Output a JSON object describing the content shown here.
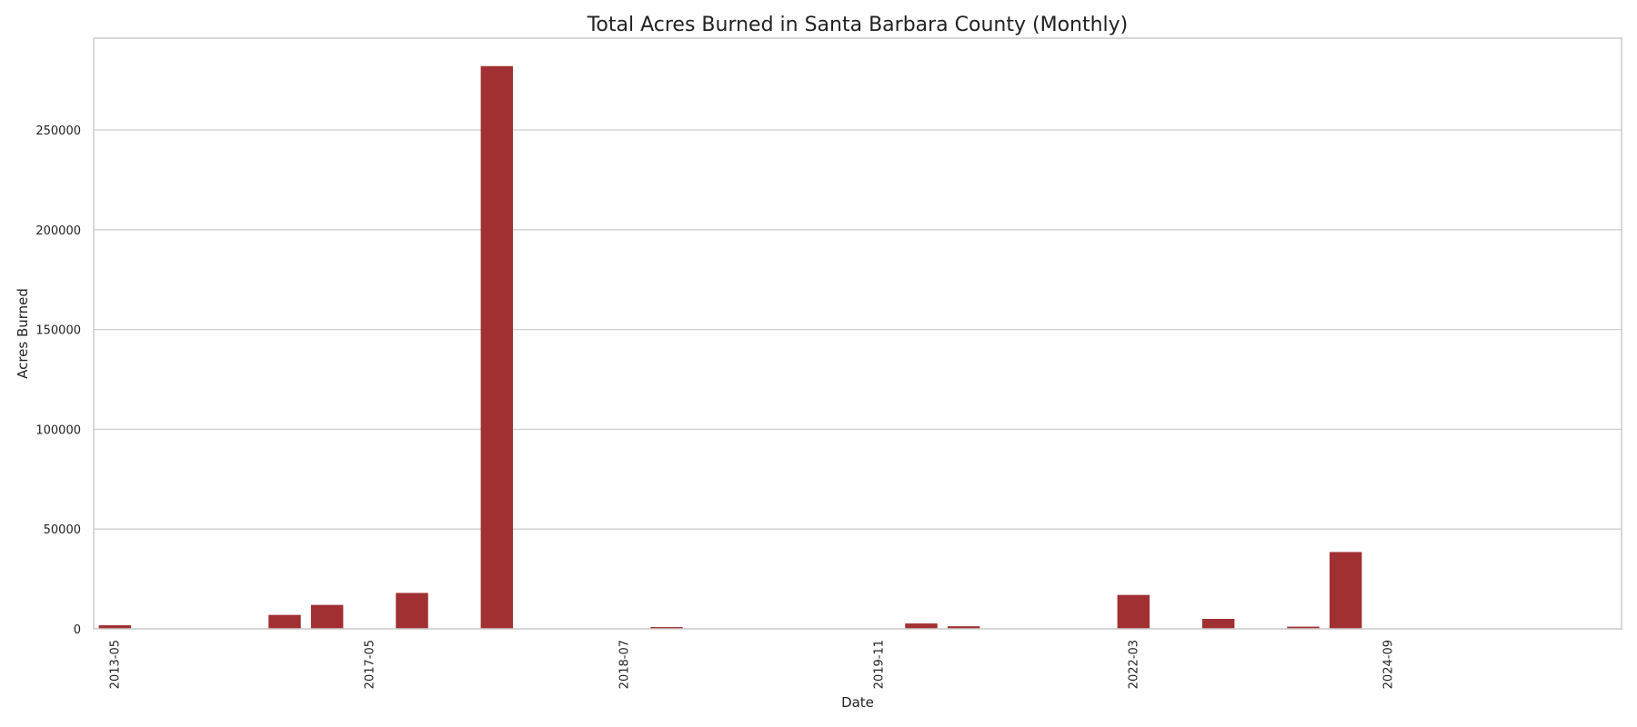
{
  "chart_data": {
    "type": "bar",
    "title": "Total Acres Burned in Santa Barbara County (Monthly)",
    "xlabel": "Date",
    "ylabel": "Acres Burned",
    "ylim": [
      0,
      296000
    ],
    "yticks": [
      0,
      50000,
      100000,
      150000,
      200000,
      250000
    ],
    "ytick_labels": [
      "0",
      "50000",
      "100000",
      "150000",
      "200000",
      "250000"
    ],
    "grid": "horizontal",
    "bar_color": "#a13032",
    "xtick_labels": [
      {
        "label": "2013-05",
        "index": 0
      },
      {
        "label": "2017-05",
        "index": 6
      },
      {
        "label": "2018-07",
        "index": 12
      },
      {
        "label": "2019-11",
        "index": 18
      },
      {
        "label": "2022-03",
        "index": 24
      },
      {
        "label": "2024-09",
        "index": 30
      }
    ],
    "values": [
      1800,
      0,
      0,
      0,
      7000,
      12000,
      0,
      18000,
      0,
      282000,
      0,
      0,
      0,
      900,
      0,
      0,
      0,
      0,
      0,
      2700,
      1300,
      0,
      0,
      0,
      17000,
      0,
      5000,
      0,
      1100,
      38500,
      0,
      0,
      0,
      0,
      0,
      0
    ]
  }
}
